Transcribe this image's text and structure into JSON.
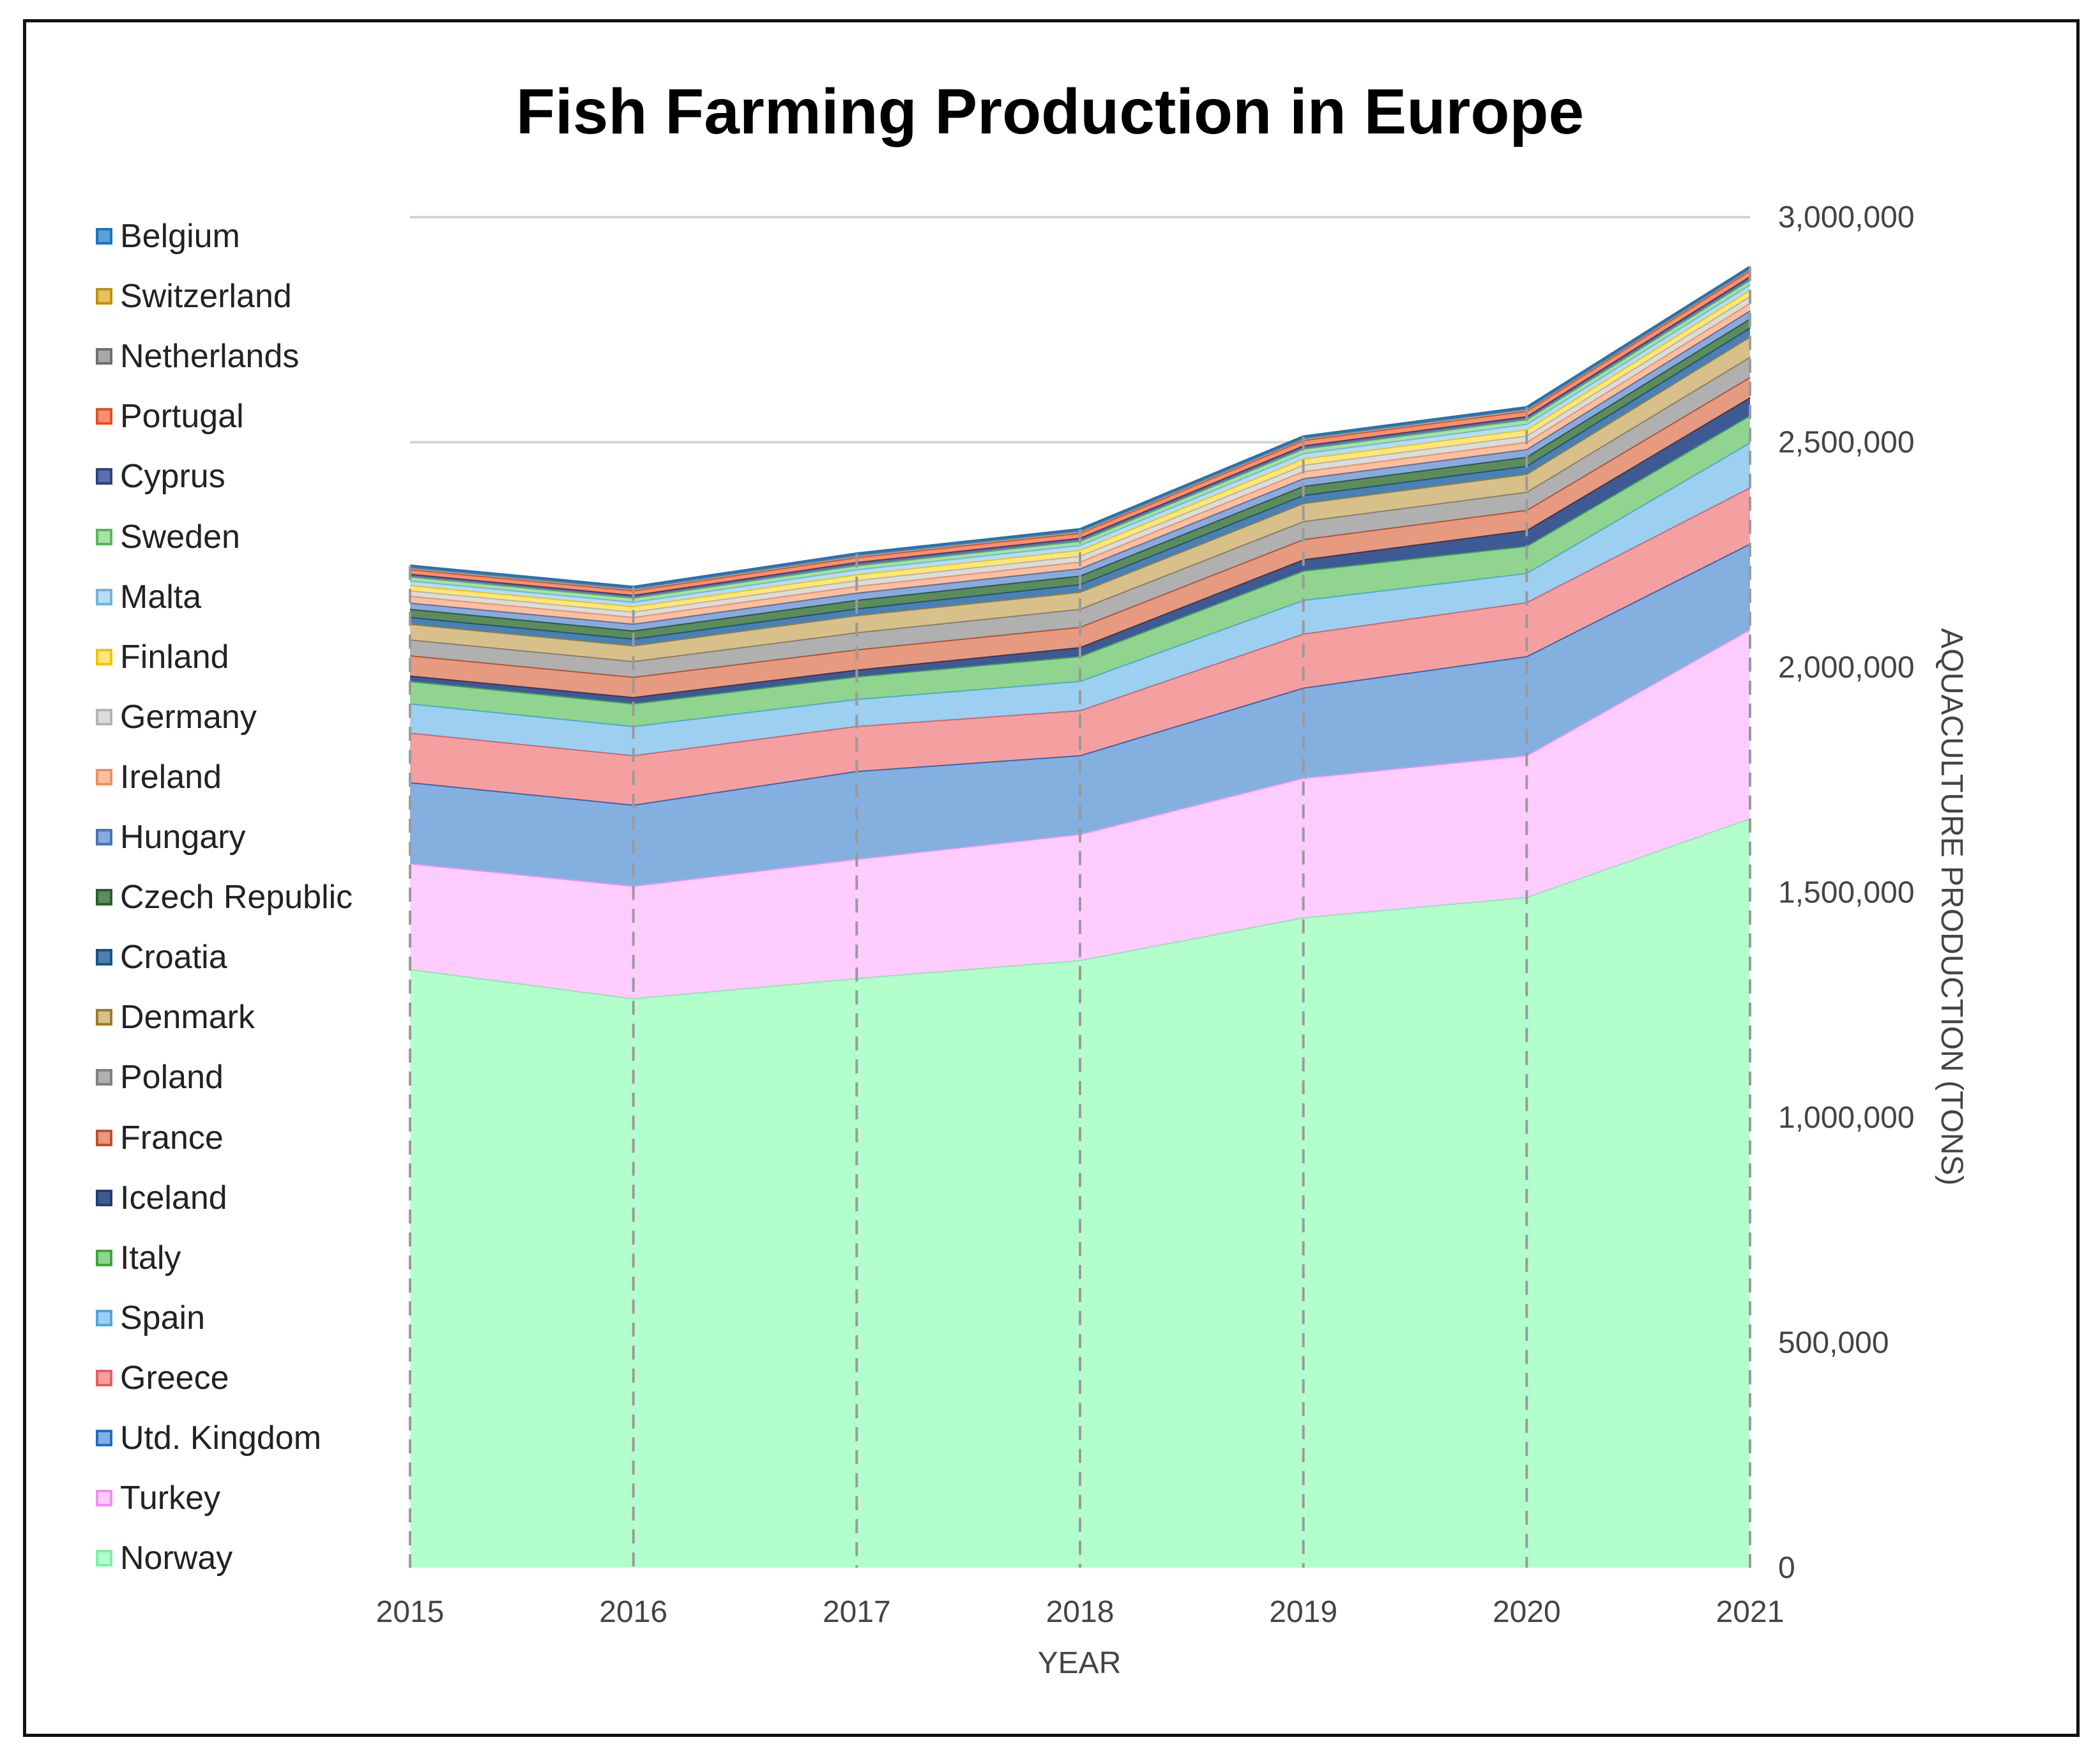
{
  "chart_data": {
    "type": "area",
    "stacked": true,
    "title": "Fish Farming Production in Europe",
    "xlabel": "YEAR",
    "ylabel": "AQUACULTURE PRODUCTION (TONS)",
    "y_axis_side": "right",
    "ylim": [
      0,
      3000000
    ],
    "yticks": [
      0,
      500000,
      1000000,
      1500000,
      2000000,
      2500000,
      3000000
    ],
    "ytick_labels": [
      "0",
      "500,000",
      "1,000,000",
      "1,500,000",
      "2,000,000",
      "2,500,000",
      "3,000,000"
    ],
    "categories": [
      "2015",
      "2016",
      "2017",
      "2018",
      "2019",
      "2020",
      "2021"
    ],
    "legend_position": "left",
    "series": [
      {
        "name": "Norway",
        "fill": "#b3ffcc",
        "stroke": "#7ef0a8",
        "values": [
          1330000,
          1265000,
          1310000,
          1350000,
          1445000,
          1490000,
          1665000
        ]
      },
      {
        "name": "Turkey",
        "fill": "#ffccff",
        "stroke": "#f08ef0",
        "values": [
          235000,
          250000,
          265000,
          280000,
          310000,
          315000,
          420000
        ]
      },
      {
        "name": "Utd. Kingdom",
        "fill": "#84b0e0",
        "stroke": "#1f6fc4",
        "values": [
          180000,
          180000,
          195000,
          175000,
          200000,
          220000,
          190000
        ]
      },
      {
        "name": "Greece",
        "fill": "#f4a0a0",
        "stroke": "#e46060",
        "values": [
          110000,
          110000,
          100000,
          100000,
          120000,
          120000,
          125000
        ]
      },
      {
        "name": "Spain",
        "fill": "#9ccff0",
        "stroke": "#4ea6de",
        "values": [
          65000,
          65000,
          60000,
          65000,
          75000,
          65000,
          100000
        ]
      },
      {
        "name": "Italy",
        "fill": "#90d490",
        "stroke": "#3ca83c",
        "values": [
          50000,
          50000,
          50000,
          55000,
          65000,
          60000,
          60000
        ]
      },
      {
        "name": "Iceland",
        "fill": "#3e5a94",
        "stroke": "#263c70",
        "values": [
          12000,
          14000,
          15000,
          20000,
          25000,
          35000,
          40000
        ]
      },
      {
        "name": "France",
        "fill": "#e69a80",
        "stroke": "#c0502c",
        "values": [
          45000,
          45000,
          45000,
          45000,
          45000,
          45000,
          45000
        ]
      },
      {
        "name": "Poland",
        "fill": "#b0b0b0",
        "stroke": "#808080",
        "values": [
          35000,
          35000,
          38000,
          40000,
          40000,
          40000,
          45000
        ]
      },
      {
        "name": "Denmark",
        "fill": "#d8c08a",
        "stroke": "#a07c20",
        "values": [
          35000,
          35000,
          38000,
          38000,
          40000,
          40000,
          45000
        ]
      },
      {
        "name": "Croatia",
        "fill": "#4a80b4",
        "stroke": "#20508a",
        "values": [
          15000,
          15000,
          15000,
          17000,
          18000,
          18000,
          20000
        ]
      },
      {
        "name": "Czech Republic",
        "fill": "#5c8c5c",
        "stroke": "#2a5e2a",
        "values": [
          18000,
          18000,
          19000,
          19000,
          20000,
          20000,
          20000
        ]
      },
      {
        "name": "Hungary",
        "fill": "#8aaadc",
        "stroke": "#4a74bc",
        "values": [
          14000,
          15000,
          16000,
          16000,
          17000,
          17000,
          18000
        ]
      },
      {
        "name": "Ireland",
        "fill": "#fcc0a0",
        "stroke": "#f09060",
        "values": [
          15000,
          15000,
          15000,
          15000,
          16000,
          16000,
          17000
        ]
      },
      {
        "name": "Germany",
        "fill": "#dcdcdc",
        "stroke": "#b4b4b4",
        "values": [
          12000,
          12000,
          13000,
          13000,
          14000,
          14000,
          15000
        ]
      },
      {
        "name": "Finland",
        "fill": "#ffe680",
        "stroke": "#f4c400",
        "values": [
          12000,
          12000,
          13000,
          13000,
          14000,
          14000,
          14000
        ]
      },
      {
        "name": "Malta",
        "fill": "#b8dcf4",
        "stroke": "#70b4e4",
        "values": [
          10000,
          10000,
          11000,
          11000,
          12000,
          12000,
          12000
        ]
      },
      {
        "name": "Sweden",
        "fill": "#a8e0a8",
        "stroke": "#58b858",
        "values": [
          9000,
          9000,
          9000,
          9000,
          10000,
          10000,
          10000
        ]
      },
      {
        "name": "Cyprus",
        "fill": "#5870b0",
        "stroke": "#2c4480",
        "values": [
          6000,
          6000,
          7000,
          7000,
          7000,
          7000,
          8000
        ]
      },
      {
        "name": "Portugal",
        "fill": "#f89070",
        "stroke": "#e05028",
        "values": [
          10000,
          10000,
          11000,
          11000,
          12000,
          12000,
          13000
        ]
      },
      {
        "name": "Netherlands",
        "fill": "#a8a8a8",
        "stroke": "#707070",
        "values": [
          5000,
          5000,
          5000,
          5000,
          5000,
          5000,
          5000
        ]
      },
      {
        "name": "Switzerland",
        "fill": "#e8c060",
        "stroke": "#c09010",
        "values": [
          2000,
          2000,
          2000,
          2000,
          2000,
          2000,
          2000
        ]
      },
      {
        "name": "Belgium",
        "fill": "#5aa0d8",
        "stroke": "#1c74c0",
        "values": [
          500,
          500,
          500,
          500,
          500,
          500,
          500
        ]
      }
    ]
  }
}
